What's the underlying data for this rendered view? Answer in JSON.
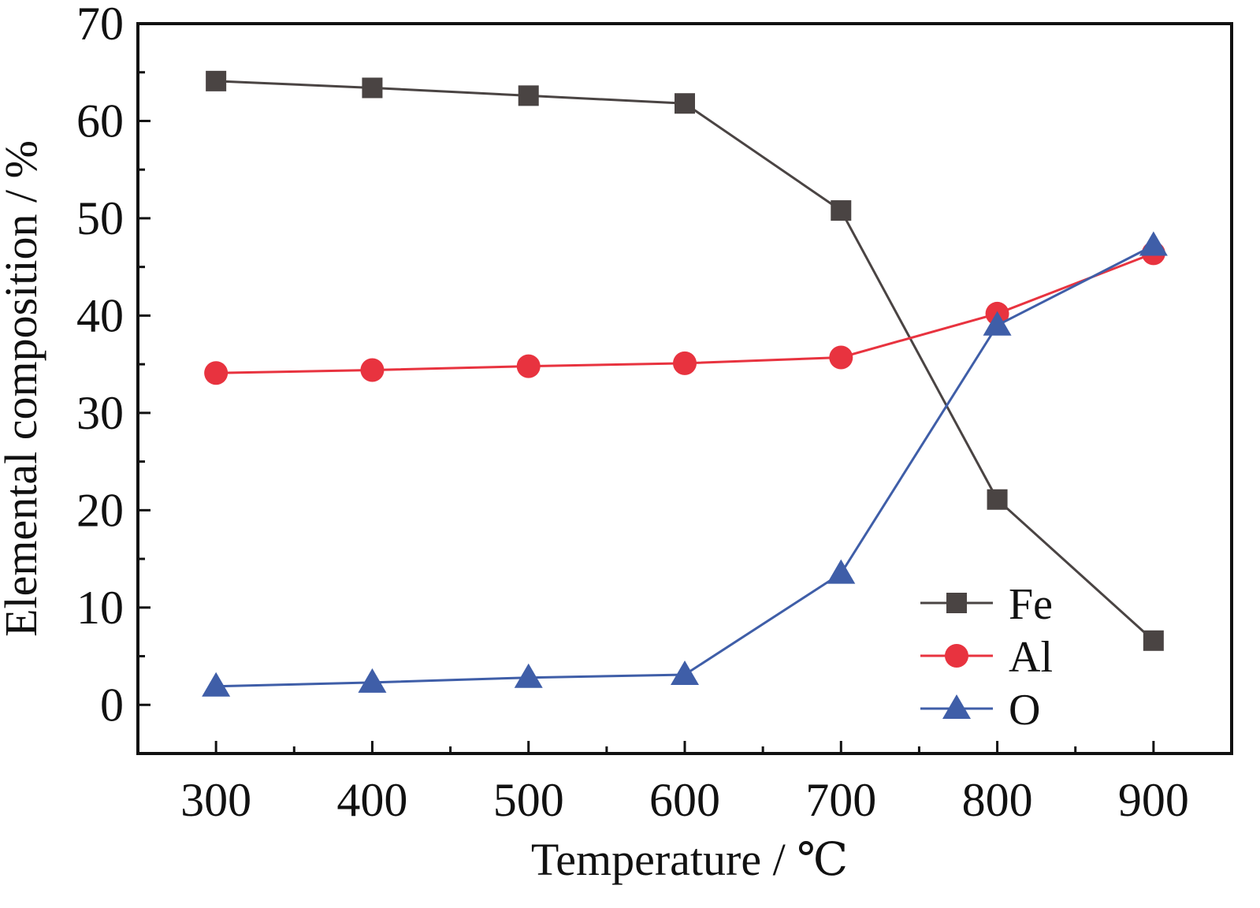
{
  "chart_data": {
    "type": "line",
    "title": "",
    "xlabel": "Temperature / ℃",
    "ylabel": "Elemental composition / %",
    "xlim": [
      250,
      950
    ],
    "ylim": [
      -5,
      70
    ],
    "x": [
      300,
      400,
      500,
      600,
      700,
      800,
      900
    ],
    "xticks": [
      "300",
      "400",
      "500",
      "600",
      "700",
      "800",
      "900"
    ],
    "yticks": [
      "0",
      "10",
      "20",
      "30",
      "40",
      "50",
      "60",
      "70"
    ],
    "ytick_values": [
      0,
      10,
      20,
      30,
      40,
      50,
      60,
      70
    ],
    "grid": false,
    "legend_position": "bottom-right",
    "series": [
      {
        "name": "Fe",
        "color": "#4a4443",
        "marker": "square",
        "values": [
          64.1,
          63.4,
          62.6,
          61.8,
          50.8,
          21.1,
          6.6
        ]
      },
      {
        "name": "Al",
        "color": "#e8333f",
        "marker": "circle",
        "values": [
          34.1,
          34.4,
          34.8,
          35.1,
          35.7,
          40.2,
          46.4
        ]
      },
      {
        "name": "O",
        "color": "#3f5ea8",
        "marker": "triangle",
        "values": [
          1.9,
          2.3,
          2.8,
          3.1,
          13.5,
          39.0,
          47.2
        ]
      }
    ]
  }
}
